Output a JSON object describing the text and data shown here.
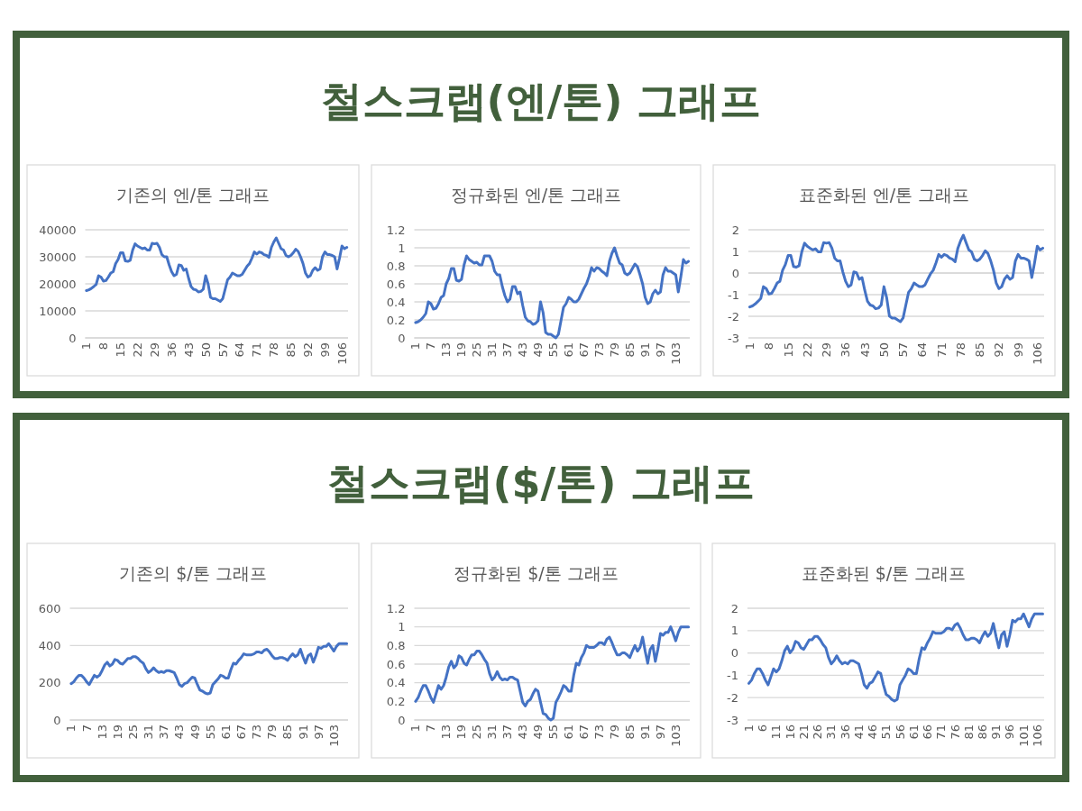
{
  "chart_data": [
    {
      "type": "line",
      "title": "기존의 엔/톤 그래프",
      "annotations": [
        "철스크랩(엔/톤) 그래프"
      ],
      "color": "#4472c4",
      "grid": "y",
      "ylim": [
        0,
        40000
      ],
      "yticks": [
        0,
        10000,
        20000,
        30000,
        40000
      ],
      "categories": [
        "1",
        null,
        null,
        null,
        null,
        null,
        null,
        "8",
        null,
        null,
        null,
        null,
        null,
        null,
        "15",
        null,
        null,
        null,
        null,
        null,
        null,
        "22",
        null,
        null,
        null,
        null,
        null,
        null,
        "29",
        null,
        null,
        null,
        null,
        null,
        null,
        "36",
        null,
        null,
        null,
        null,
        null,
        null,
        "43",
        null,
        null,
        null,
        null,
        null,
        null,
        "50",
        null,
        null,
        null,
        null,
        null,
        null,
        "57",
        null,
        null,
        null,
        null,
        null,
        null,
        "64",
        null,
        null,
        null,
        null,
        null,
        null,
        "71",
        null,
        null,
        null,
        null,
        null,
        null,
        "78",
        null,
        null,
        null,
        null,
        null,
        null,
        "85",
        null,
        null,
        null,
        null,
        null,
        null,
        "92",
        null,
        null,
        null,
        null,
        null,
        null,
        "99",
        null,
        null,
        null,
        null,
        null,
        null,
        "106",
        null,
        null
      ],
      "values": [
        17500,
        17800,
        18300,
        19000,
        19800,
        23000,
        22500,
        21000,
        21200,
        22500,
        24000,
        24500,
        27500,
        29000,
        31500,
        31500,
        28500,
        28300,
        28700,
        32500,
        34800,
        34000,
        33500,
        33000,
        33300,
        32500,
        32500,
        35000,
        34800,
        35000,
        33500,
        30800,
        30000,
        30000,
        27000,
        24500,
        23000,
        23500,
        27000,
        26800,
        25000,
        25500,
        22000,
        19000,
        18000,
        17800,
        17000,
        17200,
        18000,
        23000,
        20000,
        15000,
        14500,
        14500,
        14000,
        13500,
        14500,
        18000,
        21500,
        22500,
        24000,
        23500,
        23000,
        23000,
        23500,
        25000,
        26500,
        27500,
        29500,
        31800,
        31000,
        31800,
        31500,
        30800,
        30500,
        29800,
        33500,
        35500,
        37000,
        35000,
        33000,
        32500,
        30500,
        30000,
        30500,
        31500,
        32800,
        32000,
        30000,
        27500,
        24000,
        22500,
        23000,
        25000,
        26000,
        25000,
        25500,
        30000,
        31800,
        30800,
        30800,
        30500,
        30000,
        25500,
        29500,
        34000,
        33000,
        33500
      ]
    },
    {
      "type": "line",
      "title": "정규화된 엔/톤 그래프",
      "color": "#4472c4",
      "grid": "y",
      "ylim": [
        0,
        1.2
      ],
      "yticks": [
        0,
        0.2,
        0.4,
        0.6,
        0.8,
        1,
        1.2
      ],
      "categories": [
        "1",
        null,
        null,
        null,
        null,
        null,
        "7",
        null,
        null,
        null,
        null,
        null,
        "13",
        null,
        null,
        null,
        null,
        null,
        "19",
        null,
        null,
        null,
        null,
        null,
        "25",
        null,
        null,
        null,
        null,
        null,
        "31",
        null,
        null,
        null,
        null,
        null,
        "37",
        null,
        null,
        null,
        null,
        null,
        "43",
        null,
        null,
        null,
        null,
        null,
        "49",
        null,
        null,
        null,
        null,
        null,
        "55",
        null,
        null,
        null,
        null,
        null,
        "61",
        null,
        null,
        null,
        null,
        null,
        "67",
        null,
        null,
        null,
        null,
        null,
        "73",
        null,
        null,
        null,
        null,
        null,
        "79",
        null,
        null,
        null,
        null,
        null,
        "85",
        null,
        null,
        null,
        null,
        null,
        "91",
        null,
        null,
        null,
        null,
        null,
        "97",
        null,
        null,
        null,
        null,
        null,
        "103",
        null,
        null,
        null,
        null,
        null
      ],
      "values": [
        0.17,
        0.18,
        0.2,
        0.23,
        0.27,
        0.4,
        0.38,
        0.32,
        0.33,
        0.38,
        0.45,
        0.47,
        0.6,
        0.66,
        0.77,
        0.77,
        0.64,
        0.63,
        0.65,
        0.81,
        0.91,
        0.87,
        0.85,
        0.83,
        0.84,
        0.81,
        0.81,
        0.91,
        0.91,
        0.91,
        0.85,
        0.74,
        0.7,
        0.7,
        0.57,
        0.47,
        0.4,
        0.43,
        0.57,
        0.57,
        0.49,
        0.51,
        0.36,
        0.23,
        0.19,
        0.18,
        0.15,
        0.16,
        0.19,
        0.4,
        0.28,
        0.06,
        0.04,
        0.04,
        0.02,
        0,
        0.04,
        0.19,
        0.34,
        0.38,
        0.45,
        0.43,
        0.4,
        0.4,
        0.43,
        0.49,
        0.55,
        0.6,
        0.68,
        0.78,
        0.74,
        0.78,
        0.77,
        0.74,
        0.72,
        0.69,
        0.85,
        0.94,
        1,
        0.91,
        0.83,
        0.81,
        0.72,
        0.7,
        0.72,
        0.77,
        0.82,
        0.79,
        0.7,
        0.6,
        0.45,
        0.38,
        0.4,
        0.49,
        0.53,
        0.49,
        0.51,
        0.7,
        0.78,
        0.74,
        0.74,
        0.72,
        0.7,
        0.51,
        0.68,
        0.87,
        0.83,
        0.85
      ]
    },
    {
      "type": "line",
      "title": "표준화된 엔/톤 그래프",
      "color": "#4472c4",
      "grid": "y",
      "ylim": [
        -3,
        2
      ],
      "yticks": [
        -3,
        -2,
        -1,
        0,
        1,
        2
      ],
      "categories": [
        "1",
        null,
        null,
        null,
        null,
        null,
        null,
        "8",
        null,
        null,
        null,
        null,
        null,
        null,
        "15",
        null,
        null,
        null,
        null,
        null,
        null,
        "22",
        null,
        null,
        null,
        null,
        null,
        null,
        "29",
        null,
        null,
        null,
        null,
        null,
        null,
        "36",
        null,
        null,
        null,
        null,
        null,
        null,
        "43",
        null,
        null,
        null,
        null,
        null,
        null,
        "50",
        null,
        null,
        null,
        null,
        null,
        null,
        "57",
        null,
        null,
        null,
        null,
        null,
        null,
        "64",
        null,
        null,
        null,
        null,
        null,
        null,
        "71",
        null,
        null,
        null,
        null,
        null,
        null,
        "78",
        null,
        null,
        null,
        null,
        null,
        null,
        "85",
        null,
        null,
        null,
        null,
        null,
        null,
        "92",
        null,
        null,
        null,
        null,
        null,
        null,
        "99",
        null,
        null,
        null,
        null,
        null,
        null,
        "106",
        null,
        null
      ],
      "values": [
        -1.57,
        -1.52,
        -1.43,
        -1.31,
        -1.18,
        -0.63,
        -0.72,
        -0.97,
        -0.94,
        -0.72,
        -0.46,
        -0.38,
        0.13,
        0.39,
        0.81,
        0.81,
        0.3,
        0.27,
        0.34,
        0.98,
        1.38,
        1.24,
        1.15,
        1.07,
        1.12,
        0.98,
        0.98,
        1.41,
        1.38,
        1.41,
        1.15,
        0.69,
        0.56,
        0.56,
        0.05,
        -0.38,
        -0.63,
        -0.55,
        0.05,
        0.01,
        -0.29,
        -0.21,
        -0.8,
        -1.31,
        -1.48,
        -1.52,
        -1.65,
        -1.62,
        -1.48,
        -0.63,
        -1.14,
        -1.99,
        -2.08,
        -2.08,
        -2.17,
        -2.25,
        -2.08,
        -1.48,
        -0.89,
        -0.72,
        -0.46,
        -0.55,
        -0.63,
        -0.63,
        -0.55,
        -0.29,
        -0.04,
        0.13,
        0.47,
        0.86,
        0.73,
        0.86,
        0.81,
        0.69,
        0.64,
        0.52,
        1.15,
        1.49,
        1.75,
        1.41,
        1.07,
        0.98,
        0.64,
        0.56,
        0.64,
        0.81,
        1.03,
        0.9,
        0.56,
        0.13,
        -0.46,
        -0.72,
        -0.63,
        -0.29,
        -0.12,
        -0.29,
        -0.21,
        0.56,
        0.86,
        0.69,
        0.69,
        0.64,
        0.56,
        -0.21,
        0.47,
        1.24,
        1.07,
        1.15
      ]
    },
    {
      "type": "line",
      "title": "기존의 $/톤 그래프",
      "annotations": [
        "철스크랩($/톤) 그래프"
      ],
      "color": "#4472c4",
      "grid": "y",
      "ylim": [
        0,
        600
      ],
      "yticks": [
        0,
        200,
        400,
        600
      ],
      "categories": [
        "1",
        null,
        null,
        null,
        null,
        null,
        "7",
        null,
        null,
        null,
        null,
        null,
        "13",
        null,
        null,
        null,
        null,
        null,
        "19",
        null,
        null,
        null,
        null,
        null,
        "25",
        null,
        null,
        null,
        null,
        null,
        "31",
        null,
        null,
        null,
        null,
        null,
        "37",
        null,
        null,
        null,
        null,
        null,
        "43",
        null,
        null,
        null,
        null,
        null,
        "49",
        null,
        null,
        null,
        null,
        null,
        "55",
        null,
        null,
        null,
        null,
        null,
        "61",
        null,
        null,
        null,
        null,
        null,
        "67",
        null,
        null,
        null,
        null,
        null,
        "73",
        null,
        null,
        null,
        null,
        null,
        "79",
        null,
        null,
        null,
        null,
        null,
        "85",
        null,
        null,
        null,
        null,
        null,
        "91",
        null,
        null,
        null,
        null,
        null,
        "97",
        null,
        null,
        null,
        null,
        null,
        "103",
        null,
        null,
        null,
        null,
        null
      ],
      "values": [
        195,
        205,
        225,
        240,
        240,
        225,
        205,
        190,
        215,
        240,
        230,
        240,
        265,
        295,
        310,
        290,
        300,
        325,
        320,
        305,
        300,
        315,
        330,
        330,
        340,
        340,
        330,
        315,
        305,
        275,
        255,
        265,
        280,
        265,
        255,
        260,
        255,
        265,
        265,
        260,
        255,
        225,
        190,
        180,
        195,
        200,
        215,
        230,
        225,
        190,
        160,
        155,
        145,
        140,
        145,
        190,
        205,
        220,
        240,
        235,
        225,
        225,
        270,
        305,
        300,
        320,
        335,
        355,
        350,
        350,
        350,
        355,
        365,
        365,
        360,
        375,
        380,
        365,
        345,
        330,
        330,
        335,
        335,
        330,
        320,
        340,
        355,
        340,
        350,
        380,
        340,
        305,
        345,
        355,
        310,
        345,
        390,
        385,
        395,
        395,
        410,
        390,
        370,
        395,
        410,
        410,
        410,
        410
      ]
    },
    {
      "type": "line",
      "title": "정규화된 $/톤 그래프",
      "color": "#4472c4",
      "grid": "y",
      "ylim": [
        0,
        1.2
      ],
      "yticks": [
        0,
        0.2,
        0.4,
        0.6,
        0.8,
        1,
        1.2
      ],
      "categories": [
        "1",
        null,
        null,
        null,
        null,
        null,
        "7",
        null,
        null,
        null,
        null,
        null,
        "13",
        null,
        null,
        null,
        null,
        null,
        "19",
        null,
        null,
        null,
        null,
        null,
        "25",
        null,
        null,
        null,
        null,
        null,
        "31",
        null,
        null,
        null,
        null,
        null,
        "37",
        null,
        null,
        null,
        null,
        null,
        "43",
        null,
        null,
        null,
        null,
        null,
        "49",
        null,
        null,
        null,
        null,
        null,
        "55",
        null,
        null,
        null,
        null,
        null,
        "61",
        null,
        null,
        null,
        null,
        null,
        "67",
        null,
        null,
        null,
        null,
        null,
        "73",
        null,
        null,
        null,
        null,
        null,
        "79",
        null,
        null,
        null,
        null,
        null,
        "85",
        null,
        null,
        null,
        null,
        null,
        "91",
        null,
        null,
        null,
        null,
        null,
        "97",
        null,
        null,
        null,
        null,
        null,
        "103",
        null,
        null,
        null,
        null,
        null
      ],
      "values": [
        0.2,
        0.24,
        0.31,
        0.37,
        0.37,
        0.31,
        0.24,
        0.19,
        0.28,
        0.37,
        0.33,
        0.37,
        0.46,
        0.57,
        0.63,
        0.56,
        0.59,
        0.69,
        0.67,
        0.61,
        0.59,
        0.65,
        0.7,
        0.7,
        0.74,
        0.74,
        0.7,
        0.65,
        0.61,
        0.5,
        0.43,
        0.46,
        0.52,
        0.46,
        0.43,
        0.44,
        0.43,
        0.46,
        0.46,
        0.44,
        0.43,
        0.31,
        0.19,
        0.15,
        0.2,
        0.22,
        0.28,
        0.33,
        0.31,
        0.19,
        0.07,
        0.06,
        0.02,
        0,
        0.02,
        0.19,
        0.24,
        0.3,
        0.37,
        0.35,
        0.31,
        0.31,
        0.48,
        0.61,
        0.59,
        0.67,
        0.72,
        0.8,
        0.78,
        0.78,
        0.78,
        0.8,
        0.83,
        0.83,
        0.81,
        0.87,
        0.89,
        0.83,
        0.76,
        0.7,
        0.7,
        0.72,
        0.72,
        0.7,
        0.67,
        0.74,
        0.8,
        0.74,
        0.78,
        0.89,
        0.74,
        0.61,
        0.76,
        0.8,
        0.63,
        0.76,
        0.93,
        0.91,
        0.94,
        0.94,
        1,
        0.93,
        0.85,
        0.94,
        1,
        1,
        1,
        1
      ]
    },
    {
      "type": "line",
      "title": "표준화된 $/톤 그래프",
      "color": "#4472c4",
      "grid": "y",
      "ylim": [
        -3,
        2
      ],
      "yticks": [
        -3,
        -2,
        -1,
        0,
        1,
        2
      ],
      "categories": [
        "1",
        null,
        null,
        null,
        null,
        "6",
        null,
        null,
        null,
        null,
        "11",
        null,
        null,
        null,
        null,
        "16",
        null,
        null,
        null,
        null,
        "21",
        null,
        null,
        null,
        null,
        "26",
        null,
        null,
        null,
        null,
        "31",
        null,
        null,
        null,
        null,
        "36",
        null,
        null,
        null,
        null,
        "41",
        null,
        null,
        null,
        null,
        "46",
        null,
        null,
        null,
        null,
        "51",
        null,
        null,
        null,
        null,
        "56",
        null,
        null,
        null,
        null,
        "61",
        null,
        null,
        null,
        null,
        "66",
        null,
        null,
        null,
        null,
        "71",
        null,
        null,
        null,
        null,
        "76",
        null,
        null,
        null,
        null,
        "81",
        null,
        null,
        null,
        null,
        "86",
        null,
        null,
        null,
        null,
        "91",
        null,
        null,
        null,
        null,
        "96",
        null,
        null,
        null,
        null,
        "101",
        null,
        null,
        null,
        null,
        "106",
        null,
        null
      ],
      "values": [
        -1.36,
        -1.21,
        -0.92,
        -0.71,
        -0.71,
        -0.92,
        -1.21,
        -1.43,
        -1.07,
        -0.71,
        -0.85,
        -0.71,
        -0.35,
        0.09,
        0.3,
        0.01,
        0.16,
        0.52,
        0.45,
        0.23,
        0.16,
        0.38,
        0.59,
        0.59,
        0.74,
        0.74,
        0.59,
        0.38,
        0.23,
        -0.2,
        -0.49,
        -0.35,
        -0.13,
        -0.35,
        -0.49,
        -0.42,
        -0.49,
        -0.35,
        -0.35,
        -0.42,
        -0.49,
        -0.92,
        -1.43,
        -1.58,
        -1.36,
        -1.29,
        -1.07,
        -0.85,
        -0.92,
        -1.43,
        -1.86,
        -1.94,
        -2.08,
        -2.15,
        -2.08,
        -1.43,
        -1.21,
        -1,
        -0.71,
        -0.78,
        -0.92,
        -0.92,
        -0.27,
        0.23,
        0.16,
        0.45,
        0.66,
        0.95,
        0.88,
        0.88,
        0.88,
        0.95,
        1.1,
        1.1,
        1.03,
        1.24,
        1.32,
        1.1,
        0.81,
        0.59,
        0.59,
        0.66,
        0.66,
        0.59,
        0.45,
        0.74,
        0.95,
        0.74,
        0.88,
        1.32,
        0.74,
        0.23,
        0.81,
        0.95,
        0.3,
        0.81,
        1.46,
        1.39,
        1.53,
        1.53,
        1.75,
        1.46,
        1.17,
        1.53,
        1.75,
        1.75,
        1.75,
        1.75
      ]
    }
  ]
}
